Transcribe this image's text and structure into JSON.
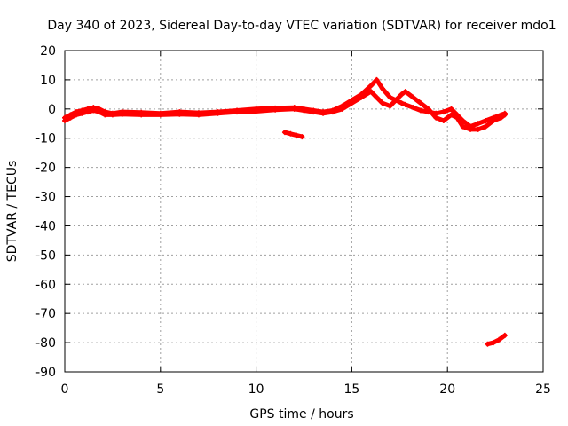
{
  "chart_data": {
    "type": "scatter",
    "title": "Day 340 of 2023, Sidereal Day-to-day VTEC variation (SDTVAR) for receiver mdo1",
    "xlabel": "GPS time / hours",
    "ylabel": "SDTVAR / TECUs",
    "xlim": [
      0,
      25
    ],
    "ylim": [
      -90,
      20
    ],
    "xticks": [
      0,
      5,
      10,
      15,
      20,
      25
    ],
    "yticks": [
      20,
      10,
      0,
      -10,
      -20,
      -30,
      -40,
      -50,
      -60,
      -70,
      -80,
      -90
    ],
    "grid": true,
    "series_color": "#ff0000",
    "series": [
      {
        "name": "main-trace-a",
        "x": [
          0.0,
          0.3,
          0.6,
          0.9,
          1.2,
          1.5,
          1.8,
          2.1,
          2.5,
          3,
          4,
          5,
          6,
          7,
          8,
          9,
          10,
          11,
          12,
          12.5,
          13,
          13.5,
          14,
          14.5,
          15,
          15.5,
          16,
          16.3,
          16.6,
          17,
          17.3,
          17.6,
          17.8,
          18.2,
          18.6,
          19,
          19.4,
          19.8,
          20.2,
          20.5,
          20.8,
          21.2,
          21.6,
          22,
          22.4,
          22.8,
          23
        ],
        "y": [
          -3,
          -2,
          -1,
          -0.5,
          0,
          0.5,
          0,
          -1,
          -1.5,
          -1,
          -1.2,
          -1.5,
          -1,
          -1.3,
          -1,
          -0.5,
          0,
          0.3,
          0.5,
          0,
          -0.5,
          -1,
          -0.5,
          1,
          3,
          5,
          8,
          10,
          7,
          4,
          3,
          2,
          1.5,
          0.5,
          -0.5,
          -1,
          -1.5,
          -1,
          0,
          -2,
          -4,
          -6,
          -5,
          -4,
          -3,
          -2,
          -1.5
        ]
      },
      {
        "name": "main-trace-b",
        "x": [
          0.0,
          0.3,
          0.6,
          0.9,
          1.2,
          1.5,
          1.8,
          2.1,
          2.5,
          3,
          4,
          5,
          6,
          7,
          8,
          9,
          10,
          11,
          12,
          12.5,
          13,
          13.5,
          14,
          14.5,
          15,
          15.5,
          16,
          16.3,
          16.6,
          17,
          17.3,
          17.6,
          17.8,
          18.2,
          18.6,
          19,
          19.4,
          19.8,
          20.2,
          20.5,
          20.8,
          21.2,
          21.6,
          22,
          22.4,
          22.8,
          23
        ],
        "y": [
          -4,
          -3,
          -2,
          -1.5,
          -1,
          -0.5,
          -1,
          -2,
          -2,
          -1.8,
          -2,
          -2,
          -1.8,
          -2,
          -1.5,
          -1,
          -0.8,
          -0.3,
          0,
          -0.5,
          -1,
          -1.5,
          -1,
          0,
          2,
          4,
          6,
          4,
          2,
          1,
          3,
          5,
          6,
          4,
          2,
          0,
          -3,
          -4,
          -2,
          -3,
          -6,
          -7,
          -7,
          -6,
          -4,
          -3,
          -2
        ]
      },
      {
        "name": "segment-near-12h",
        "x": [
          11.5,
          11.8,
          12.1,
          12.4
        ],
        "y": [
          -8,
          -8.5,
          -9,
          -9.5
        ]
      },
      {
        "name": "segment-near-22h",
        "x": [
          22.1,
          22.4,
          22.7,
          23.0
        ],
        "y": [
          -80.5,
          -80,
          -79,
          -77.5
        ]
      }
    ]
  }
}
